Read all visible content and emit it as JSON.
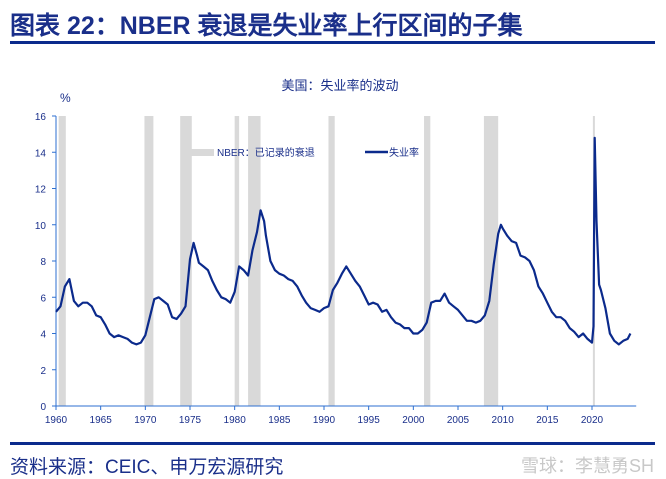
{
  "header": {
    "title": "图表 22：NBER 衰退是失业率上行区间的子集"
  },
  "footer": {
    "source": "资料来源：CEIC、申万宏源研究",
    "watermark": "雪球：李慧勇SH"
  },
  "colors": {
    "line": "#0b2a8c",
    "recession": "#d9d9d9",
    "axis": "#2e6fd0"
  },
  "chart_data": {
    "type": "line",
    "title": "美国：失业率的波动",
    "ylabel": "%",
    "xlim": [
      1960,
      2024.5
    ],
    "ylim": [
      0,
      16
    ],
    "xticks": [
      1960,
      1965,
      1970,
      1975,
      1980,
      1985,
      1990,
      1995,
      2000,
      2005,
      2010,
      2015,
      2020
    ],
    "yticks": [
      0,
      2,
      4,
      6,
      8,
      10,
      12,
      14,
      16
    ],
    "legend": {
      "position": "top-center",
      "recession_label": "NBER：已记录的衰退",
      "series_label": "失业率"
    },
    "recessions": [
      [
        1960.3,
        1961.1
      ],
      [
        1969.9,
        1970.9
      ],
      [
        1973.9,
        1975.2
      ],
      [
        1980.0,
        1980.5
      ],
      [
        1981.5,
        1982.9
      ],
      [
        1990.5,
        1991.2
      ],
      [
        2001.2,
        2001.9
      ],
      [
        2007.9,
        2009.5
      ],
      [
        2020.1,
        2020.3
      ]
    ],
    "series": [
      {
        "name": "失业率",
        "points": [
          [
            1960,
            5.2
          ],
          [
            1960.5,
            5.5
          ],
          [
            1961,
            6.6
          ],
          [
            1961.5,
            7.0
          ],
          [
            1962,
            5.8
          ],
          [
            1962.5,
            5.5
          ],
          [
            1963,
            5.7
          ],
          [
            1963.5,
            5.7
          ],
          [
            1964,
            5.5
          ],
          [
            1964.5,
            5.0
          ],
          [
            1965,
            4.9
          ],
          [
            1965.5,
            4.5
          ],
          [
            1966,
            4.0
          ],
          [
            1966.5,
            3.8
          ],
          [
            1967,
            3.9
          ],
          [
            1967.5,
            3.8
          ],
          [
            1968,
            3.7
          ],
          [
            1968.5,
            3.5
          ],
          [
            1969,
            3.4
          ],
          [
            1969.5,
            3.5
          ],
          [
            1970,
            3.9
          ],
          [
            1970.5,
            4.9
          ],
          [
            1971,
            5.9
          ],
          [
            1971.5,
            6.0
          ],
          [
            1972,
            5.8
          ],
          [
            1972.5,
            5.6
          ],
          [
            1973,
            4.9
          ],
          [
            1973.5,
            4.8
          ],
          [
            1974,
            5.1
          ],
          [
            1974.5,
            5.5
          ],
          [
            1975,
            8.1
          ],
          [
            1975.4,
            9.0
          ],
          [
            1975.8,
            8.3
          ],
          [
            1976,
            7.9
          ],
          [
            1976.5,
            7.7
          ],
          [
            1977,
            7.5
          ],
          [
            1977.5,
            6.9
          ],
          [
            1978,
            6.4
          ],
          [
            1978.5,
            6.0
          ],
          [
            1979,
            5.9
          ],
          [
            1979.5,
            5.7
          ],
          [
            1980,
            6.3
          ],
          [
            1980.5,
            7.7
          ],
          [
            1981,
            7.5
          ],
          [
            1981.5,
            7.2
          ],
          [
            1982,
            8.6
          ],
          [
            1982.5,
            9.6
          ],
          [
            1982.9,
            10.8
          ],
          [
            1983.3,
            10.2
          ],
          [
            1983.5,
            9.4
          ],
          [
            1984,
            8.0
          ],
          [
            1984.5,
            7.5
          ],
          [
            1985,
            7.3
          ],
          [
            1985.5,
            7.2
          ],
          [
            1986,
            7.0
          ],
          [
            1986.5,
            6.9
          ],
          [
            1987,
            6.6
          ],
          [
            1987.5,
            6.1
          ],
          [
            1988,
            5.7
          ],
          [
            1988.5,
            5.4
          ],
          [
            1989,
            5.3
          ],
          [
            1989.5,
            5.2
          ],
          [
            1990,
            5.4
          ],
          [
            1990.5,
            5.5
          ],
          [
            1991,
            6.4
          ],
          [
            1991.5,
            6.8
          ],
          [
            1992,
            7.3
          ],
          [
            1992.5,
            7.7
          ],
          [
            1993,
            7.3
          ],
          [
            1993.5,
            6.9
          ],
          [
            1994,
            6.6
          ],
          [
            1994.5,
            6.1
          ],
          [
            1995,
            5.6
          ],
          [
            1995.5,
            5.7
          ],
          [
            1996,
            5.6
          ],
          [
            1996.5,
            5.2
          ],
          [
            1997,
            5.3
          ],
          [
            1997.5,
            4.9
          ],
          [
            1998,
            4.6
          ],
          [
            1998.5,
            4.5
          ],
          [
            1999,
            4.3
          ],
          [
            1999.5,
            4.3
          ],
          [
            2000,
            4.0
          ],
          [
            2000.5,
            4.0
          ],
          [
            2001,
            4.2
          ],
          [
            2001.5,
            4.6
          ],
          [
            2002,
            5.7
          ],
          [
            2002.5,
            5.8
          ],
          [
            2003,
            5.8
          ],
          [
            2003.5,
            6.2
          ],
          [
            2004,
            5.7
          ],
          [
            2004.5,
            5.5
          ],
          [
            2005,
            5.3
          ],
          [
            2005.5,
            5.0
          ],
          [
            2006,
            4.7
          ],
          [
            2006.5,
            4.7
          ],
          [
            2007,
            4.6
          ],
          [
            2007.5,
            4.7
          ],
          [
            2008,
            5.0
          ],
          [
            2008.5,
            5.8
          ],
          [
            2009,
            7.8
          ],
          [
            2009.5,
            9.5
          ],
          [
            2009.8,
            10.0
          ],
          [
            2010,
            9.8
          ],
          [
            2010.5,
            9.4
          ],
          [
            2011,
            9.1
          ],
          [
            2011.5,
            9.0
          ],
          [
            2012,
            8.3
          ],
          [
            2012.5,
            8.2
          ],
          [
            2013,
            8.0
          ],
          [
            2013.5,
            7.5
          ],
          [
            2014,
            6.6
          ],
          [
            2014.5,
            6.2
          ],
          [
            2015,
            5.7
          ],
          [
            2015.5,
            5.2
          ],
          [
            2016,
            4.9
          ],
          [
            2016.5,
            4.9
          ],
          [
            2017,
            4.7
          ],
          [
            2017.5,
            4.3
          ],
          [
            2018,
            4.1
          ],
          [
            2018.5,
            3.8
          ],
          [
            2019,
            4.0
          ],
          [
            2019.5,
            3.7
          ],
          [
            2020,
            3.5
          ],
          [
            2020.17,
            4.4
          ],
          [
            2020.3,
            14.8
          ],
          [
            2020.5,
            10.2
          ],
          [
            2020.8,
            6.7
          ],
          [
            2021,
            6.4
          ],
          [
            2021.5,
            5.4
          ],
          [
            2022,
            4.0
          ],
          [
            2022.5,
            3.6
          ],
          [
            2023,
            3.4
          ],
          [
            2023.5,
            3.6
          ],
          [
            2024,
            3.7
          ],
          [
            2024.3,
            4.0
          ]
        ]
      }
    ]
  }
}
